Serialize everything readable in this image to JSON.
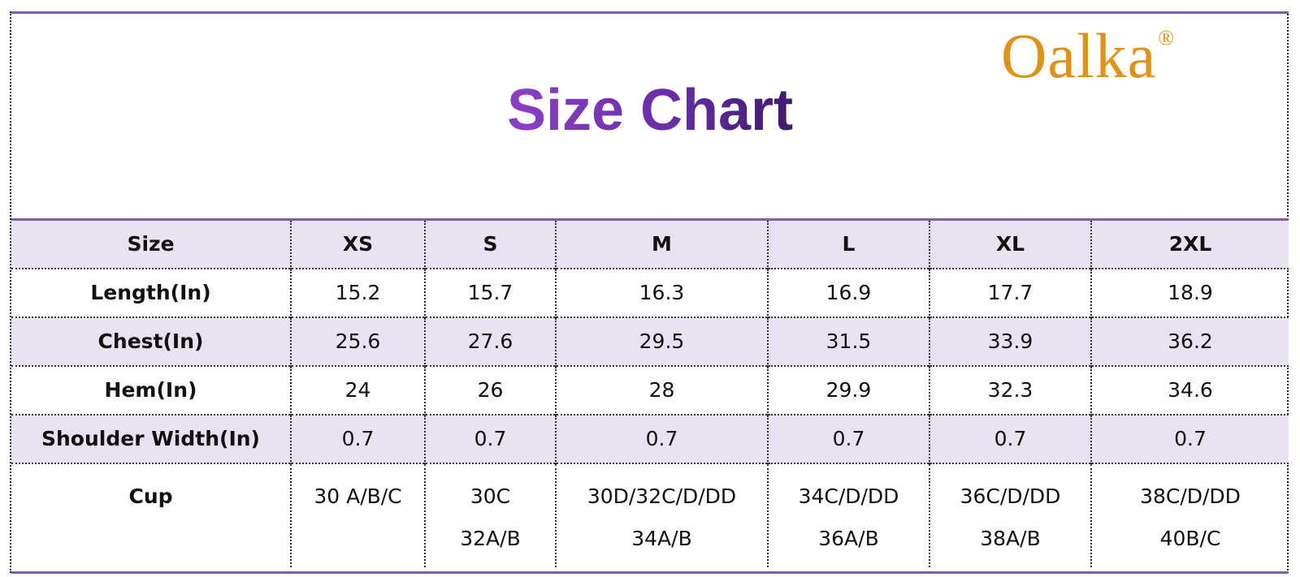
{
  "brand": {
    "name": "Oalka",
    "mark": "®",
    "color": "#e0911a"
  },
  "title": "Size Chart",
  "table": {
    "headers": [
      "Size",
      "XS",
      "S",
      "M",
      "L",
      "XL",
      "2XL"
    ],
    "rows": [
      {
        "label": "Length(In)",
        "values": [
          "15.2",
          "15.7",
          "16.3",
          "16.9",
          "17.7",
          "18.9"
        ]
      },
      {
        "label": "Chest(In)",
        "values": [
          "25.6",
          "27.6",
          "29.5",
          "31.5",
          "33.9",
          "36.2"
        ]
      },
      {
        "label": "Hem(In)",
        "values": [
          "24",
          "26",
          "28",
          "29.9",
          "32.3",
          "34.6"
        ]
      },
      {
        "label": "Shoulder Width(In)",
        "values": [
          "0.7",
          "0.7",
          "0.7",
          "0.7",
          "0.7",
          "0.7"
        ]
      }
    ],
    "cup": {
      "label": "Cup",
      "values": [
        [
          "30 A/B/C",
          ""
        ],
        [
          "30C",
          "32A/B"
        ],
        [
          "30D/32C/D/DD",
          "34A/B"
        ],
        [
          "34C/D/DD",
          "36A/B"
        ],
        [
          "36C/D/DD",
          "38A/B"
        ],
        [
          "38C/D/DD",
          "40B/C"
        ]
      ]
    }
  },
  "colors": {
    "accent": "#7b5ea8",
    "row_shade": "#e8e2f0",
    "title_start": "#8c3fc6",
    "title_end": "#3e1a6e"
  }
}
